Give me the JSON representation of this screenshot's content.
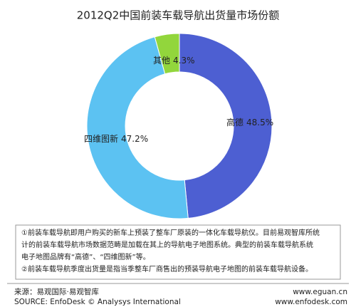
{
  "chart_data": {
    "type": "donut",
    "title": "2012Q2中国前装车载导航出货量市场份额",
    "categories": [
      "高德",
      "四维图新",
      "其他"
    ],
    "values": [
      48.5,
      47.2,
      4.3
    ],
    "value_labels": [
      "48.5%",
      "47.2%",
      "4.3%"
    ],
    "colors": [
      "#4d5fd2",
      "#5cc2f2",
      "#92d63c"
    ]
  },
  "notes": [
    "①前装车载导航即用户购买的新车上预装了整车厂原装的一体化车载导航仪。目前易观智库所统",
    "计的前装车载导航市场数据范畴是加载在其上的导航电子地图系统。典型的前装车载导航系统",
    "电子地图品牌有“高德”、“四维图新”等。",
    "②前装车载导航季度出货量是指当季整车厂商售出的预装导航电子地图的前装车载导航设备。"
  ],
  "footer": {
    "source_cn": "来源：易观国际·易观智库",
    "source_en": "SOURCE: EnfoDesk © Analysys International",
    "url1": "www.eguan.cn",
    "url2": "www.enfodesk.com"
  }
}
